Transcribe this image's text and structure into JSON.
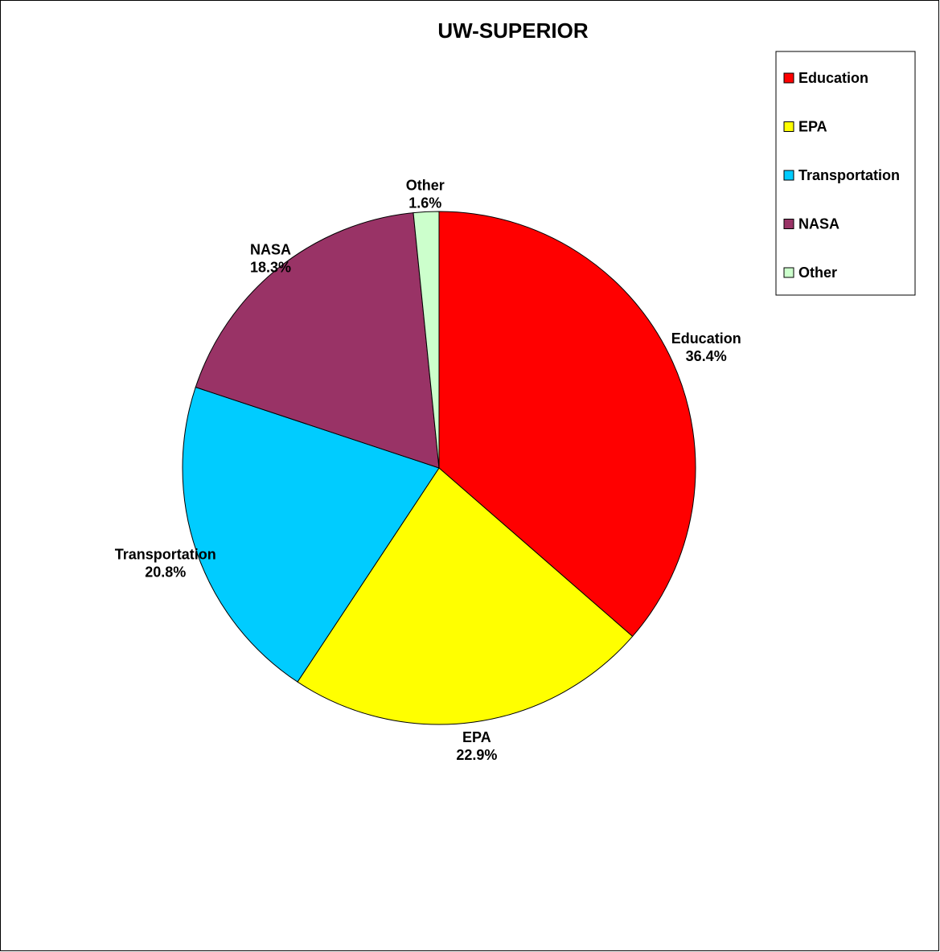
{
  "chart_data": {
    "type": "pie",
    "title": "UW-SUPERIOR",
    "legend_position": "top-right",
    "slices": [
      {
        "name": "Education",
        "value": 36.4,
        "label": "36.4%",
        "color": "#ff0000"
      },
      {
        "name": "EPA",
        "value": 22.9,
        "label": "22.9%",
        "color": "#ffff00"
      },
      {
        "name": "Transportation",
        "value": 20.8,
        "label": "20.8%",
        "color": "#00ccff"
      },
      {
        "name": "NASA",
        "value": 18.3,
        "label": "18.3%",
        "color": "#993366"
      },
      {
        "name": "Other",
        "value": 1.6,
        "label": "1.6%",
        "color": "#ccffcc"
      }
    ]
  }
}
